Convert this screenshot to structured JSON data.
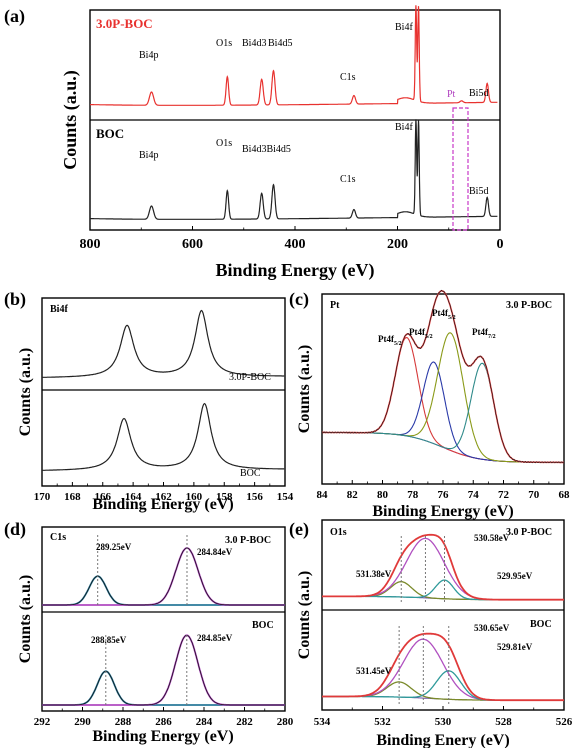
{
  "panels": {
    "a": {
      "letter": "(a)",
      "top_label": "3.0P-BOC",
      "bottom_label": "BOC",
      "pt_label": "Pt",
      "peaks_top": [
        "Bi4p",
        "O1s",
        "Bi4d3",
        "Bi4d5",
        "C1s",
        "Bi4f",
        "Bi5d"
      ],
      "peaks_bottom": [
        "Bi4p",
        "O1s",
        "Bi4d3Bi4d5",
        "C1s",
        "Bi4f",
        "Bi5d"
      ]
    },
    "b": {
      "letter": "(b)",
      "element": "Bi4f",
      "top_label": "3.0P-BOC",
      "bottom_label": "BOC"
    },
    "c": {
      "letter": "(c)",
      "element": "Pt",
      "sample": "3.0 P-BOC",
      "peak_labels": [
        {
          "main": "Pt4f",
          "sub": "5/2"
        },
        {
          "main": "Pt4f",
          "sub": "5/2"
        },
        {
          "main": "Pt4f",
          "sub": "5/2"
        },
        {
          "main": "Pt4f",
          "sub": "7/2"
        }
      ]
    },
    "d": {
      "letter": "(d)",
      "element": "C1s",
      "top_label": "3.0 P-BOC",
      "bottom_label": "BOC",
      "top_peaks": [
        "289.25eV",
        "284.84eV"
      ],
      "bottom_peaks": [
        "288.85eV",
        "284.85eV"
      ]
    },
    "e": {
      "letter": "(e)",
      "element": "O1s",
      "top_label": "3.0 P-BOC",
      "bottom_label": "BOC",
      "top_peaks": [
        "531.38eV",
        "530.58eV",
        "529.95eV"
      ],
      "bottom_peaks": [
        "531.45eV",
        "530.65eV",
        "529.81eV"
      ]
    }
  },
  "chart_data": [
    {
      "panel": "a",
      "type": "line",
      "xlabel": "Binding Energy (eV)",
      "ylabel": "Counts (a.u.)",
      "xlim": [
        800,
        0
      ],
      "x_ticks": [
        "800",
        "600",
        "400",
        "200",
        "0"
      ],
      "series": [
        {
          "name": "3.0P-BOC",
          "color": "#e8322f",
          "peaks_x": [
            680,
            532,
            465,
            442,
            285,
            164,
            159,
            75,
            25
          ]
        },
        {
          "name": "BOC",
          "color": "#222222",
          "peaks_x": [
            680,
            532,
            465,
            442,
            285,
            164,
            159,
            25
          ]
        }
      ]
    },
    {
      "panel": "b",
      "type": "line",
      "xlabel": "Binding Energy (eV)",
      "ylabel": "Counts (a.u.)",
      "xlim": [
        170,
        154
      ],
      "x_ticks": [
        "170",
        "168",
        "166",
        "164",
        "162",
        "160",
        "158",
        "156",
        "154"
      ],
      "series": [
        {
          "name": "3.0P-BOC",
          "peaks_x": [
            164.4,
            159.5
          ]
        },
        {
          "name": "BOC",
          "peaks_x": [
            164.6,
            159.3
          ]
        }
      ]
    },
    {
      "panel": "c",
      "type": "line",
      "xlabel": "Binding Energy (eV)",
      "ylabel": "Counts (a.u.)",
      "xlim": [
        84,
        68
      ],
      "x_ticks": [
        "84",
        "82",
        "80",
        "78",
        "76",
        "74",
        "72",
        "70",
        "68"
      ],
      "components_x": [
        78.4,
        76.6,
        75.5,
        73.4
      ],
      "component_colors": [
        "#d63a3a",
        "#2a3aa8",
        "#8a9a18",
        "#2f8a8a"
      ]
    },
    {
      "panel": "d",
      "type": "line",
      "xlabel": "Binding Energy (eV)",
      "ylabel": "Counts (a.u.)",
      "xlim": [
        292,
        280
      ],
      "x_ticks": [
        "292",
        "290",
        "288",
        "286",
        "284",
        "282",
        "280"
      ],
      "series": [
        {
          "name": "3.0 P-BOC",
          "peaks_x": [
            289.25,
            284.84
          ]
        },
        {
          "name": "BOC",
          "peaks_x": [
            288.85,
            284.85
          ]
        }
      ]
    },
    {
      "panel": "e",
      "type": "line",
      "xlabel": "Binding Enery (eV)",
      "ylabel": "Counts (a.u.)",
      "xlim": [
        534,
        526
      ],
      "x_ticks": [
        "534",
        "532",
        "530",
        "528",
        "526"
      ],
      "series": [
        {
          "name": "3.0 P-BOC",
          "peaks_x": [
            531.38,
            530.58,
            529.95
          ]
        },
        {
          "name": "BOC",
          "peaks_x": [
            531.45,
            530.65,
            529.81
          ]
        }
      ]
    }
  ]
}
